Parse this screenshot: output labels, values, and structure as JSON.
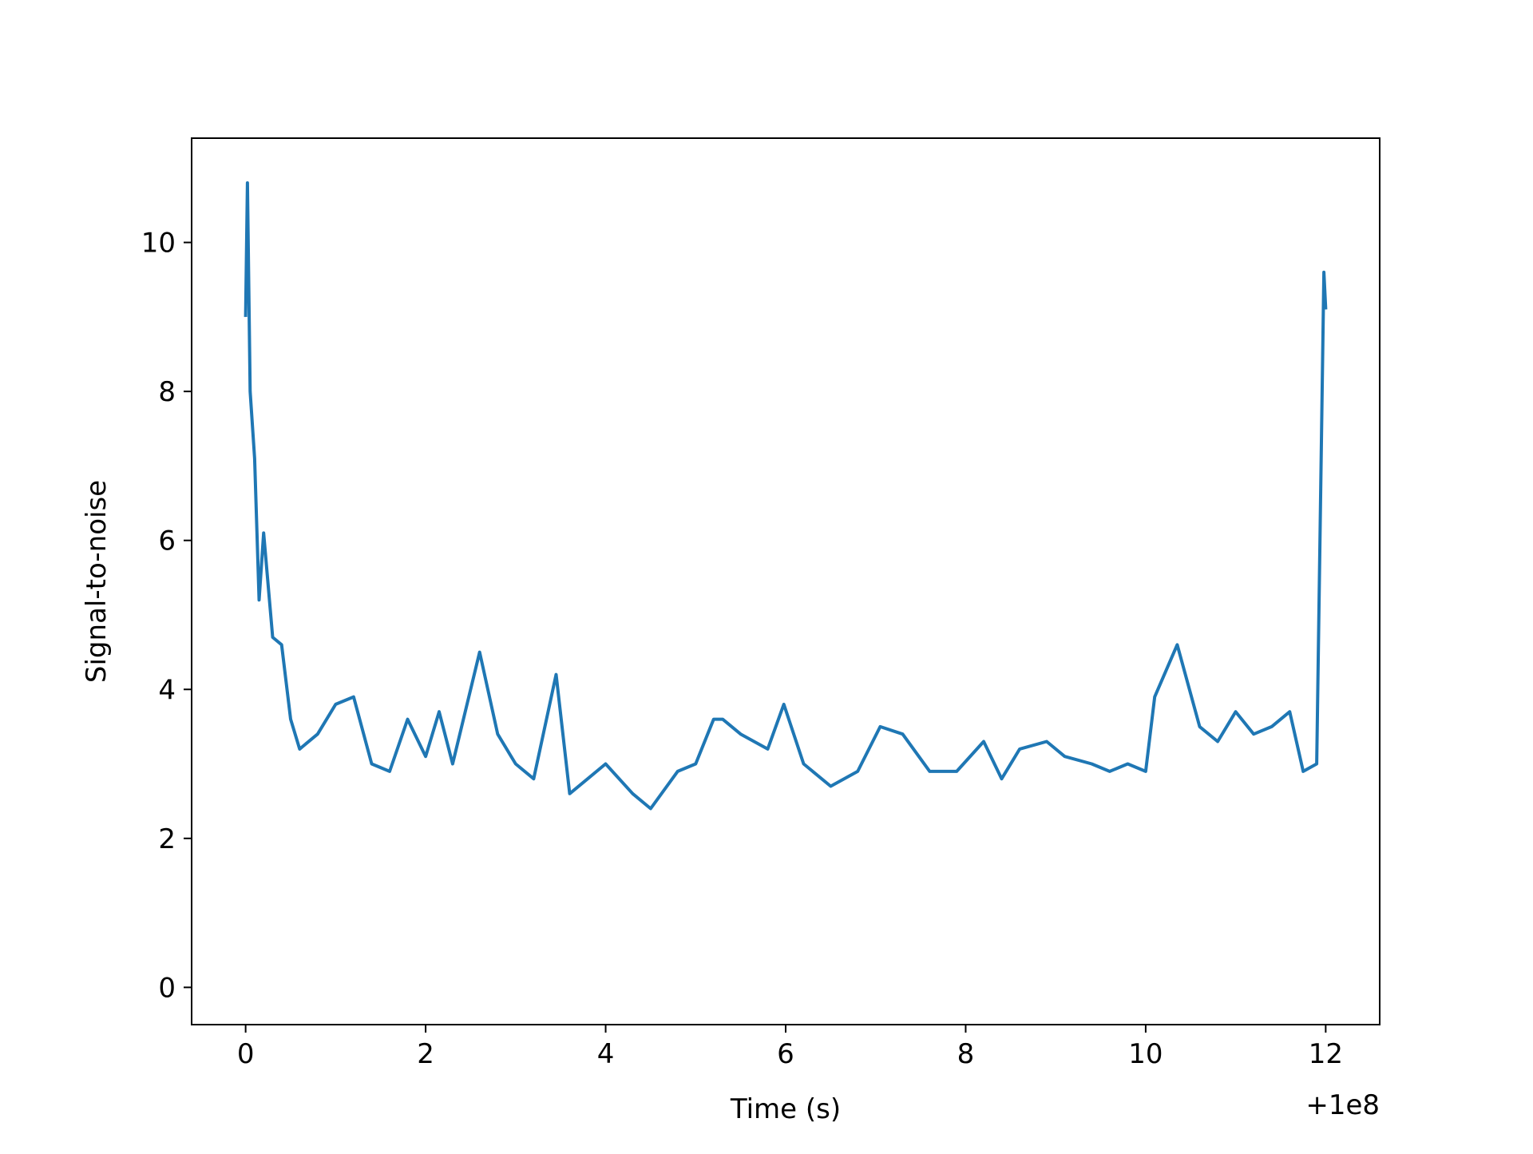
{
  "chart_data": {
    "type": "line",
    "title": "",
    "xlabel": "Time (s)",
    "ylabel": "Signal-to-noise",
    "x_offset_label": "+1e8",
    "xlim": [
      -0.6,
      12.6
    ],
    "ylim": [
      -0.5,
      11.4
    ],
    "x_ticks": [
      0,
      2,
      4,
      6,
      8,
      10,
      12
    ],
    "x_tick_labels": [
      "0",
      "2",
      "4",
      "6",
      "8",
      "10",
      "12"
    ],
    "y_ticks": [
      0,
      2,
      4,
      6,
      8,
      10
    ],
    "y_tick_labels": [
      "0",
      "2",
      "4",
      "6",
      "8",
      "10"
    ],
    "grid": false,
    "series": [
      {
        "color": "#1f77b4",
        "x": [
          0,
          0.02,
          0.05,
          0.1,
          0.15,
          0.2,
          0.3,
          0.4,
          0.5,
          0.6,
          0.8,
          1.0,
          1.2,
          1.4,
          1.6,
          1.8,
          2.0,
          2.15,
          2.3,
          2.6,
          2.8,
          3.0,
          3.2,
          3.45,
          3.6,
          3.8,
          4.0,
          4.3,
          4.5,
          4.8,
          5.0,
          5.2,
          5.3,
          5.5,
          5.8,
          5.98,
          6.2,
          6.5,
          6.8,
          7.05,
          7.3,
          7.6,
          7.9,
          8.2,
          8.4,
          8.6,
          8.9,
          9.1,
          9.4,
          9.6,
          9.8,
          10.0,
          10.1,
          10.35,
          10.6,
          10.8,
          11.0,
          11.2,
          11.4,
          11.6,
          11.75,
          11.9,
          11.98,
          12.0
        ],
        "y": [
          9.0,
          10.8,
          8.0,
          7.1,
          5.2,
          6.1,
          4.7,
          4.6,
          3.6,
          3.2,
          3.4,
          3.8,
          3.9,
          3.0,
          2.9,
          3.6,
          3.1,
          3.7,
          3.0,
          4.5,
          3.4,
          3.0,
          2.8,
          4.2,
          2.6,
          2.8,
          3.0,
          2.6,
          2.4,
          2.9,
          3.0,
          3.6,
          3.6,
          3.4,
          3.2,
          3.8,
          3.0,
          2.7,
          2.9,
          3.5,
          3.4,
          2.9,
          2.9,
          3.3,
          2.8,
          3.2,
          3.3,
          3.1,
          3.0,
          2.9,
          3.0,
          2.9,
          3.9,
          4.6,
          3.5,
          3.3,
          3.7,
          3.4,
          3.5,
          3.7,
          2.9,
          3.0,
          9.6,
          9.1
        ]
      }
    ]
  }
}
